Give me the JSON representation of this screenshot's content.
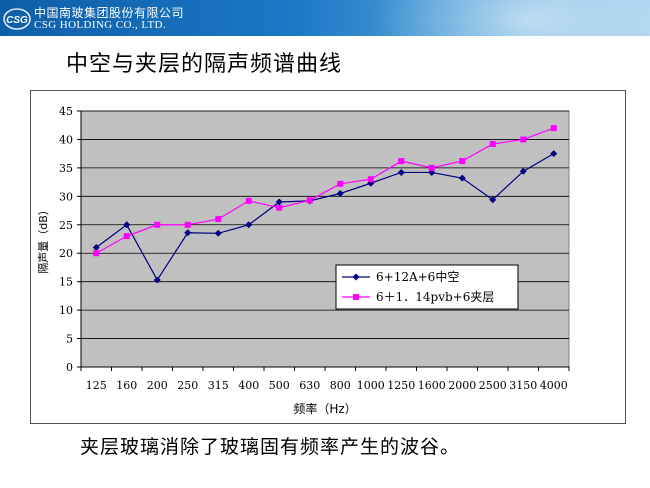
{
  "header": {
    "company_cn": "中国南玻集团股份有限公司",
    "company_en": "CSG HOLDING CO., LTD.",
    "logo_text": "CSG",
    "band_color": "#1b78c4"
  },
  "page_title": "中空与夹层的隔声频谱曲线",
  "caption": "夹层玻璃消除了玻璃固有频率产生的波谷。",
  "chart_data": {
    "type": "line",
    "title": "",
    "xlabel": "频率（Hz）",
    "ylabel": "隔声量（dB）",
    "ylim": [
      0,
      45
    ],
    "yticks": [
      0,
      5,
      10,
      15,
      20,
      25,
      30,
      35,
      40,
      45
    ],
    "grid": true,
    "legend_position": "right-center",
    "plot_background": "#c0c0c0",
    "categories": [
      "125",
      "160",
      "200",
      "250",
      "315",
      "400",
      "500",
      "630",
      "800",
      "1000",
      "1250",
      "1600",
      "2000",
      "2500",
      "3150",
      "4000"
    ],
    "series": [
      {
        "name": "6+12A+6中空",
        "color": "#000080",
        "marker": "diamond",
        "values": [
          21,
          25,
          15.3,
          23.6,
          23.5,
          25,
          29,
          29.2,
          30.5,
          32.3,
          34.2,
          34.2,
          33.2,
          29.4,
          34.4,
          37.5
        ]
      },
      {
        "name": "6＋1．14pvb+6夹层",
        "color": "#ff00ff",
        "marker": "square",
        "values": [
          20,
          23,
          25,
          25,
          26,
          29.2,
          28,
          29.3,
          32.2,
          33,
          36.2,
          35,
          36.2,
          39.2,
          40,
          42
        ]
      }
    ]
  }
}
